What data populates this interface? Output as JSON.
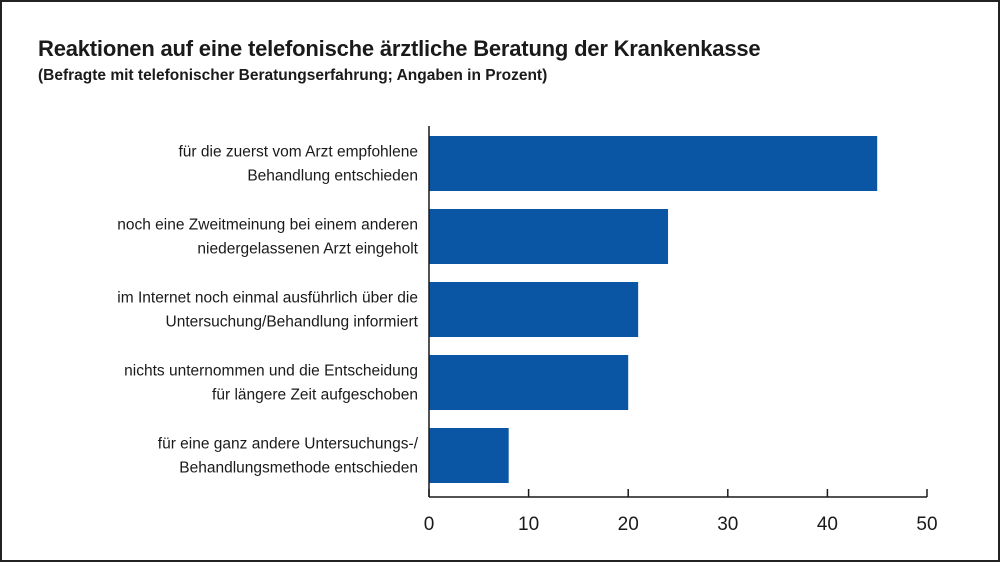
{
  "chart_data": {
    "type": "bar",
    "orientation": "horizontal",
    "title": "Reaktionen auf eine telefonische ärztliche Beratung der Krankenkasse",
    "subtitle": "(Befragte mit telefonischer Beratungserfahrung; Angaben in Prozent)",
    "categories": [
      [
        "für die zuerst vom Arzt empfohlene",
        "Behandlung entschieden"
      ],
      [
        "noch eine Zweitmeinung bei einem anderen",
        "niedergelassenen Arzt eingeholt"
      ],
      [
        "im Internet noch einmal ausführlich über die",
        "Untersuchung/Behandlung informiert"
      ],
      [
        "nichts unternommen und die Entscheidung",
        "für längere Zeit aufgeschoben"
      ],
      [
        "für eine ganz andere Untersuchungs-/",
        "Behandlungsmethode entschieden"
      ]
    ],
    "values": [
      45,
      24,
      21,
      20,
      8
    ],
    "xlim": [
      0,
      50
    ],
    "xticks": [
      0,
      10,
      20,
      30,
      40,
      50
    ],
    "xlabel": "",
    "ylabel": "",
    "grid": false,
    "bar_color": "#0b56a4"
  }
}
